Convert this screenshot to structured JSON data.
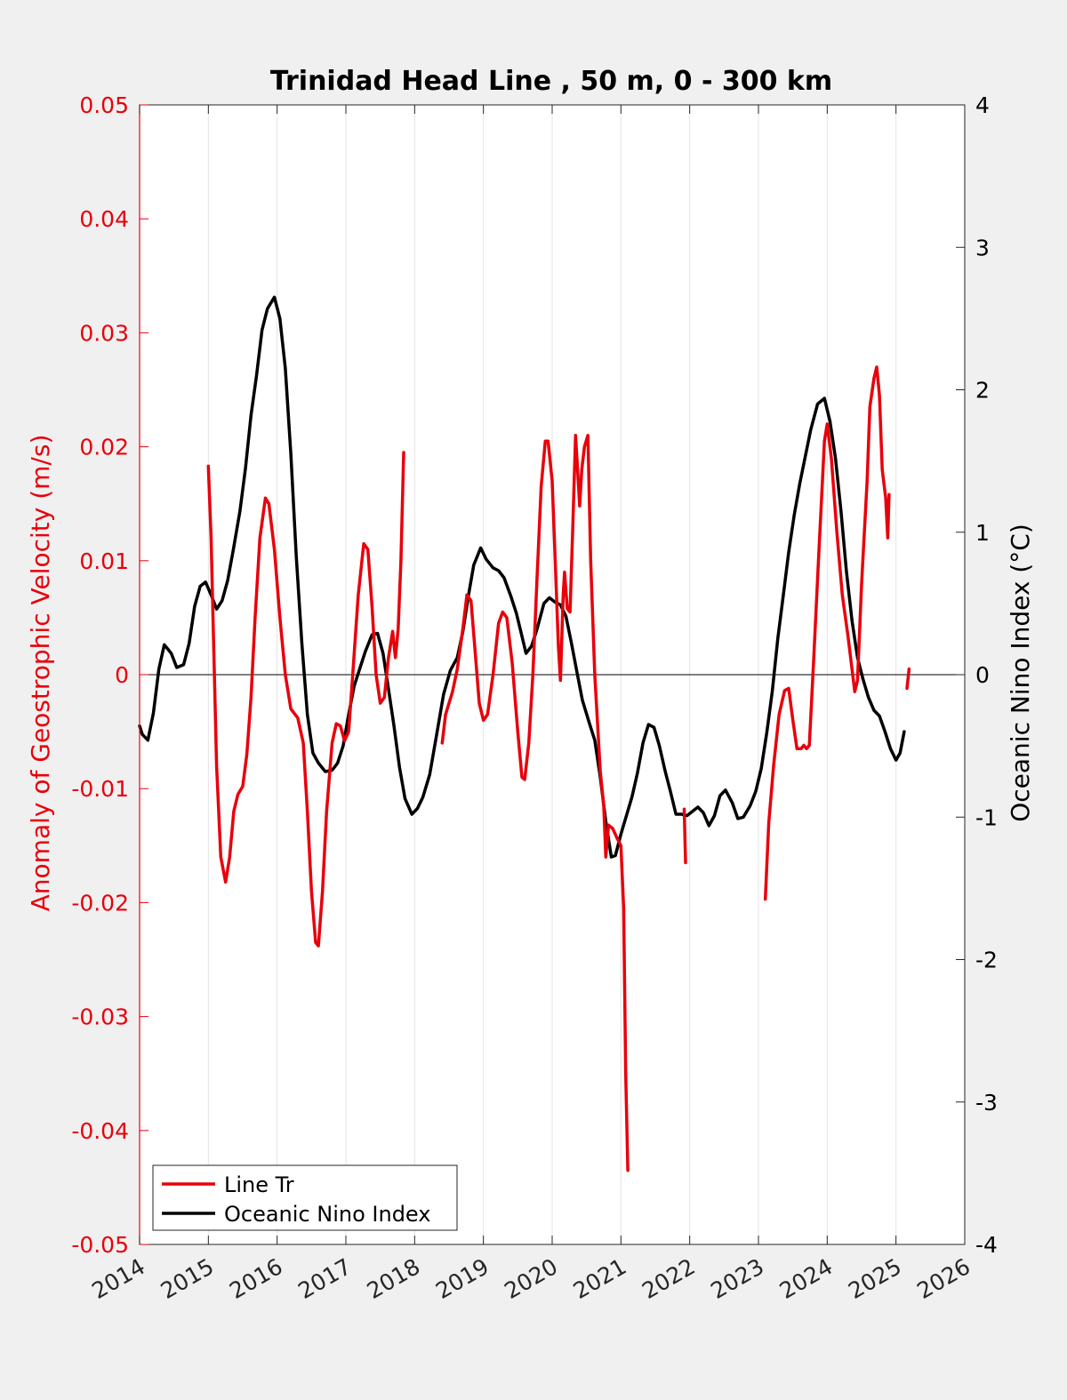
{
  "chart_data": {
    "type": "line",
    "title": "Trinidad Head Line , 50 m, 0 - 300 km",
    "ylabel_left": "Anomaly of Geostrophic Velocity (m/s)",
    "ylabel_right": "Oceanic Nino Index (°C)",
    "xlabel": "",
    "xlim": [
      2014,
      2026
    ],
    "ylim_left": [
      -0.05,
      0.05
    ],
    "ylim_right": [
      -4,
      4
    ],
    "x_ticks": [
      "2014",
      "2015",
      "2016",
      "2017",
      "2018",
      "2019",
      "2020",
      "2021",
      "2022",
      "2023",
      "2024",
      "2025",
      "2026"
    ],
    "y_left_ticks": [
      "-0.05",
      "-0.04",
      "-0.03",
      "-0.02",
      "-0.01",
      "0",
      "0.01",
      "0.02",
      "0.03",
      "0.04",
      "0.05"
    ],
    "y_right_ticks": [
      "-4",
      "-3",
      "-2",
      "-1",
      "0",
      "1",
      "2",
      "3",
      "4"
    ],
    "grid": "vertical",
    "legend_position": "bottom-left",
    "colors": {
      "line_tr": "#e8000b",
      "oni": "#000000",
      "left_axis": "#e8000b",
      "right_axis": "#000000"
    },
    "series": [
      {
        "name": "Line Tr",
        "axis": "left",
        "segments": [
          [
            [
              2015.0,
              0.0183
            ],
            [
              2015.04,
              0.012
            ],
            [
              2015.08,
              0.002
            ],
            [
              2015.12,
              -0.008
            ],
            [
              2015.18,
              -0.016
            ],
            [
              2015.25,
              -0.0182
            ],
            [
              2015.31,
              -0.016
            ],
            [
              2015.37,
              -0.012
            ],
            [
              2015.43,
              -0.0105
            ],
            [
              2015.5,
              -0.0098
            ],
            [
              2015.56,
              -0.007
            ],
            [
              2015.62,
              -0.002
            ],
            [
              2015.68,
              0.005
            ],
            [
              2015.75,
              0.012
            ],
            [
              2015.83,
              0.0155
            ],
            [
              2015.88,
              0.015
            ],
            [
              2015.96,
              0.011
            ],
            [
              2016.04,
              0.005
            ],
            [
              2016.12,
              0.0
            ],
            [
              2016.2,
              -0.003
            ],
            [
              2016.3,
              -0.0038
            ],
            [
              2016.38,
              -0.006
            ],
            [
              2016.44,
              -0.012
            ],
            [
              2016.5,
              -0.019
            ],
            [
              2016.56,
              -0.0235
            ],
            [
              2016.6,
              -0.0238
            ],
            [
              2016.66,
              -0.019
            ],
            [
              2016.72,
              -0.012
            ],
            [
              2016.8,
              -0.006
            ],
            [
              2016.86,
              -0.0043
            ],
            [
              2016.92,
              -0.0045
            ],
            [
              2016.98,
              -0.0058
            ],
            [
              2017.04,
              -0.005
            ],
            [
              2017.1,
              0.0
            ],
            [
              2017.18,
              0.007
            ],
            [
              2017.26,
              0.0115
            ],
            [
              2017.32,
              0.011
            ],
            [
              2017.38,
              0.006
            ],
            [
              2017.44,
              0.0
            ],
            [
              2017.5,
              -0.0025
            ],
            [
              2017.56,
              -0.002
            ],
            [
              2017.62,
              0.0015
            ],
            [
              2017.68,
              0.0038
            ],
            [
              2017.72,
              0.0015
            ],
            [
              2017.76,
              0.004
            ],
            [
              2017.8,
              0.01
            ],
            [
              2017.84,
              0.0195
            ]
          ],
          [
            [
              2018.4,
              -0.006
            ],
            [
              2018.45,
              -0.0035
            ],
            [
              2018.55,
              -0.0015
            ],
            [
              2018.62,
              0.0005
            ],
            [
              2018.7,
              0.004
            ],
            [
              2018.76,
              0.007
            ],
            [
              2018.82,
              0.0065
            ],
            [
              2018.88,
              0.002
            ],
            [
              2018.94,
              -0.0025
            ],
            [
              2019.0,
              -0.004
            ],
            [
              2019.06,
              -0.0035
            ],
            [
              2019.14,
              0.0
            ],
            [
              2019.22,
              0.0045
            ],
            [
              2019.28,
              0.0055
            ],
            [
              2019.34,
              0.005
            ],
            [
              2019.42,
              0.001
            ],
            [
              2019.5,
              -0.005
            ],
            [
              2019.56,
              -0.009
            ],
            [
              2019.6,
              -0.0092
            ],
            [
              2019.66,
              -0.006
            ],
            [
              2019.72,
              0.0
            ],
            [
              2019.78,
              0.0085
            ],
            [
              2019.84,
              0.0165
            ],
            [
              2019.9,
              0.0205
            ],
            [
              2019.94,
              0.0205
            ],
            [
              2020.0,
              0.017
            ],
            [
              2020.05,
              0.009
            ],
            [
              2020.09,
              0.0025
            ],
            [
              2020.12,
              -0.0005
            ],
            [
              2020.16,
              0.007
            ],
            [
              2020.18,
              0.009
            ],
            [
              2020.22,
              0.0058
            ],
            [
              2020.26,
              0.0055
            ],
            [
              2020.3,
              0.013
            ],
            [
              2020.34,
              0.021
            ],
            [
              2020.37,
              0.018
            ],
            [
              2020.4,
              0.0148
            ],
            [
              2020.43,
              0.018
            ],
            [
              2020.47,
              0.02
            ],
            [
              2020.52,
              0.021
            ],
            [
              2020.56,
              0.01
            ],
            [
              2020.62,
              0.0
            ],
            [
              2020.7,
              -0.0085
            ],
            [
              2020.75,
              -0.0115
            ],
            [
              2020.78,
              -0.016
            ],
            [
              2020.82,
              -0.0132
            ],
            [
              2020.88,
              -0.0135
            ],
            [
              2020.94,
              -0.0143
            ],
            [
              2021.0,
              -0.015
            ],
            [
              2021.04,
              -0.0205
            ],
            [
              2021.07,
              -0.035
            ],
            [
              2021.1,
              -0.0435
            ]
          ],
          [
            [
              2021.92,
              -0.0118
            ],
            [
              2021.94,
              -0.0165
            ]
          ],
          [
            [
              2023.1,
              -0.0197
            ],
            [
              2023.15,
              -0.013
            ],
            [
              2023.22,
              -0.008
            ],
            [
              2023.3,
              -0.0035
            ],
            [
              2023.38,
              -0.0014
            ],
            [
              2023.44,
              -0.0012
            ],
            [
              2023.5,
              -0.004
            ],
            [
              2023.56,
              -0.0065
            ],
            [
              2023.62,
              -0.0065
            ],
            [
              2023.66,
              -0.0062
            ],
            [
              2023.7,
              -0.0065
            ],
            [
              2023.74,
              -0.0062
            ],
            [
              2023.8,
              0.001
            ],
            [
              2023.88,
              0.011
            ],
            [
              2023.96,
              0.0205
            ],
            [
              2024.0,
              0.022
            ],
            [
              2024.06,
              0.019
            ],
            [
              2024.14,
              0.0125
            ],
            [
              2024.22,
              0.007
            ],
            [
              2024.3,
              0.0035
            ],
            [
              2024.36,
              0.0005
            ],
            [
              2024.4,
              -0.0015
            ],
            [
              2024.44,
              -0.0005
            ],
            [
              2024.5,
              0.008
            ],
            [
              2024.58,
              0.017
            ],
            [
              2024.62,
              0.0235
            ],
            [
              2024.68,
              0.026
            ],
            [
              2024.72,
              0.027
            ],
            [
              2024.76,
              0.0245
            ],
            [
              2024.8,
              0.018
            ],
            [
              2024.85,
              0.0155
            ],
            [
              2024.88,
              0.012
            ],
            [
              2024.9,
              0.0158
            ]
          ],
          [
            [
              2025.16,
              -0.0012
            ],
            [
              2025.19,
              0.0005
            ]
          ]
        ]
      },
      {
        "name": "Oceanic Nino Index",
        "axis": "right",
        "points": [
          [
            2014.0,
            -0.36
          ],
          [
            2014.04,
            -0.42
          ],
          [
            2014.12,
            -0.46
          ],
          [
            2014.2,
            -0.27
          ],
          [
            2014.28,
            0.04
          ],
          [
            2014.36,
            0.21
          ],
          [
            2014.46,
            0.15
          ],
          [
            2014.54,
            0.05
          ],
          [
            2014.64,
            0.07
          ],
          [
            2014.72,
            0.22
          ],
          [
            2014.8,
            0.48
          ],
          [
            2014.88,
            0.62
          ],
          [
            2014.96,
            0.65
          ],
          [
            2015.04,
            0.56
          ],
          [
            2015.12,
            0.46
          ],
          [
            2015.2,
            0.52
          ],
          [
            2015.28,
            0.66
          ],
          [
            2015.36,
            0.87
          ],
          [
            2015.46,
            1.15
          ],
          [
            2015.54,
            1.45
          ],
          [
            2015.62,
            1.82
          ],
          [
            2015.7,
            2.1
          ],
          [
            2015.78,
            2.42
          ],
          [
            2015.86,
            2.57
          ],
          [
            2015.96,
            2.65
          ],
          [
            2016.04,
            2.5
          ],
          [
            2016.12,
            2.15
          ],
          [
            2016.2,
            1.55
          ],
          [
            2016.28,
            0.82
          ],
          [
            2016.36,
            0.22
          ],
          [
            2016.44,
            -0.28
          ],
          [
            2016.52,
            -0.55
          ],
          [
            2016.6,
            -0.62
          ],
          [
            2016.7,
            -0.68
          ],
          [
            2016.8,
            -0.67
          ],
          [
            2016.88,
            -0.62
          ],
          [
            2016.96,
            -0.5
          ],
          [
            2017.04,
            -0.28
          ],
          [
            2017.12,
            -0.08
          ],
          [
            2017.2,
            0.04
          ],
          [
            2017.28,
            0.16
          ],
          [
            2017.38,
            0.28
          ],
          [
            2017.46,
            0.29
          ],
          [
            2017.54,
            0.15
          ],
          [
            2017.62,
            -0.1
          ],
          [
            2017.7,
            -0.36
          ],
          [
            2017.78,
            -0.65
          ],
          [
            2017.86,
            -0.87
          ],
          [
            2017.96,
            -0.98
          ],
          [
            2018.04,
            -0.94
          ],
          [
            2018.12,
            -0.86
          ],
          [
            2018.22,
            -0.7
          ],
          [
            2018.32,
            -0.42
          ],
          [
            2018.42,
            -0.14
          ],
          [
            2018.52,
            0.03
          ],
          [
            2018.62,
            0.12
          ],
          [
            2018.7,
            0.3
          ],
          [
            2018.78,
            0.55
          ],
          [
            2018.86,
            0.77
          ],
          [
            2018.96,
            0.89
          ],
          [
            2019.04,
            0.81
          ],
          [
            2019.14,
            0.75
          ],
          [
            2019.22,
            0.73
          ],
          [
            2019.3,
            0.68
          ],
          [
            2019.4,
            0.55
          ],
          [
            2019.48,
            0.43
          ],
          [
            2019.56,
            0.27
          ],
          [
            2019.62,
            0.15
          ],
          [
            2019.7,
            0.2
          ],
          [
            2019.78,
            0.32
          ],
          [
            2019.88,
            0.5
          ],
          [
            2019.96,
            0.54
          ],
          [
            2020.04,
            0.51
          ],
          [
            2020.12,
            0.49
          ],
          [
            2020.2,
            0.41
          ],
          [
            2020.28,
            0.22
          ],
          [
            2020.36,
            0.02
          ],
          [
            2020.44,
            -0.18
          ],
          [
            2020.54,
            -0.34
          ],
          [
            2020.62,
            -0.46
          ],
          [
            2020.7,
            -0.72
          ],
          [
            2020.78,
            -1.03
          ],
          [
            2020.86,
            -1.28
          ],
          [
            2020.92,
            -1.27
          ],
          [
            2021.0,
            -1.12
          ],
          [
            2021.08,
            -0.99
          ],
          [
            2021.16,
            -0.86
          ],
          [
            2021.24,
            -0.69
          ],
          [
            2021.32,
            -0.48
          ],
          [
            2021.4,
            -0.35
          ],
          [
            2021.48,
            -0.37
          ],
          [
            2021.56,
            -0.5
          ],
          [
            2021.64,
            -0.67
          ],
          [
            2021.72,
            -0.82
          ],
          [
            2021.8,
            -0.98
          ],
          [
            2021.88,
            -0.98
          ],
          [
            2021.96,
            -0.99
          ],
          [
            2022.04,
            -0.96
          ],
          [
            2022.12,
            -0.93
          ],
          [
            2022.2,
            -0.97
          ],
          [
            2022.28,
            -1.06
          ],
          [
            2022.36,
            -0.99
          ],
          [
            2022.44,
            -0.85
          ],
          [
            2022.52,
            -0.81
          ],
          [
            2022.62,
            -0.9
          ],
          [
            2022.7,
            -1.01
          ],
          [
            2022.78,
            -1.0
          ],
          [
            2022.88,
            -0.92
          ],
          [
            2022.96,
            -0.82
          ],
          [
            2023.04,
            -0.66
          ],
          [
            2023.12,
            -0.41
          ],
          [
            2023.2,
            -0.12
          ],
          [
            2023.28,
            0.25
          ],
          [
            2023.36,
            0.55
          ],
          [
            2023.44,
            0.86
          ],
          [
            2023.52,
            1.12
          ],
          [
            2023.6,
            1.34
          ],
          [
            2023.68,
            1.53
          ],
          [
            2023.76,
            1.72
          ],
          [
            2023.86,
            1.9
          ],
          [
            2023.96,
            1.94
          ],
          [
            2024.04,
            1.78
          ],
          [
            2024.12,
            1.52
          ],
          [
            2024.2,
            1.15
          ],
          [
            2024.28,
            0.72
          ],
          [
            2024.36,
            0.38
          ],
          [
            2024.44,
            0.12
          ],
          [
            2024.52,
            -0.03
          ],
          [
            2024.6,
            -0.16
          ],
          [
            2024.68,
            -0.25
          ],
          [
            2024.76,
            -0.29
          ],
          [
            2024.84,
            -0.4
          ],
          [
            2024.92,
            -0.52
          ],
          [
            2025.0,
            -0.6
          ],
          [
            2025.06,
            -0.55
          ],
          [
            2025.12,
            -0.4
          ]
        ]
      }
    ],
    "legend": [
      "Line Tr",
      "Oceanic Nino Index"
    ]
  }
}
